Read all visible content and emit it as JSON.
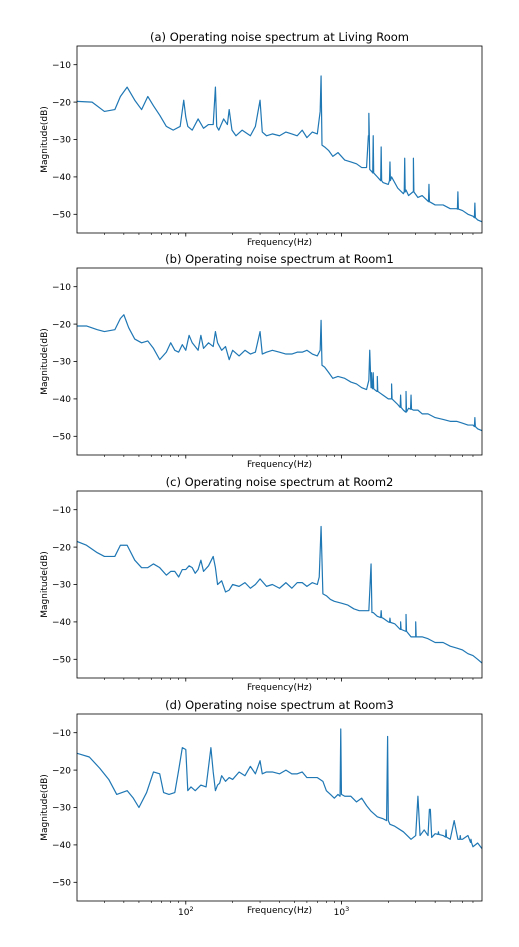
{
  "chart_data": [
    {
      "type": "line",
      "title": "(a) Operating noise spectrum at Living Room",
      "xlabel": "Frequency(Hz)",
      "ylabel": "Magnitude(dB)",
      "x_scale": "log",
      "xlim": [
        20,
        8000
      ],
      "ylim": [
        -55,
        -5
      ],
      "yticks": [
        -10,
        -20,
        -30,
        -40,
        -50
      ],
      "line_color": "#1f77b4",
      "grid": false,
      "series": [
        {
          "x": [
            20,
            25,
            30,
            35,
            38,
            42,
            47,
            52,
            57,
            62,
            68,
            75,
            83,
            92,
            97,
            100,
            103,
            110,
            120,
            130,
            140,
            150,
            155,
            158,
            163,
            175,
            185,
            190,
            198,
            210,
            230,
            260,
            280,
            300,
            310,
            330,
            360,
            400,
            440,
            480,
            520,
            560,
            600,
            650,
            700,
            730,
            740,
            750,
            780,
            830,
            880,
            950,
            1050,
            1150,
            1250,
            1350,
            1450,
            1500,
            1520,
            1560,
            1700,
            1850,
            2000,
            2100,
            2300,
            2500,
            2600,
            2700,
            2900,
            3100,
            3300,
            3600,
            4000,
            4500,
            5000,
            5500,
            6000,
            6500,
            7000,
            7500,
            8000
          ],
          "y": [
            -19.8,
            -20,
            -22.5,
            -22,
            -18.5,
            -16,
            -19.5,
            -22,
            -18.5,
            -21,
            -23.5,
            -26.5,
            -27.5,
            -26.5,
            -19.5,
            -24,
            -26.5,
            -27.5,
            -24.5,
            -27,
            -26,
            -26,
            -16,
            -26.5,
            -27.5,
            -24.5,
            -26,
            -22,
            -27.5,
            -29,
            -27.5,
            -29,
            -26.5,
            -19.5,
            -28,
            -29,
            -28.5,
            -29,
            -28,
            -28.5,
            -29,
            -27.5,
            -29.5,
            -28,
            -28.5,
            -22.5,
            -13,
            -31.5,
            -32,
            -33,
            -34.5,
            -33.5,
            -35.5,
            -36,
            -36.5,
            -37.5,
            -37.5,
            -29,
            -38,
            -38.5,
            -40,
            -41.5,
            -42,
            -40,
            -43,
            -44.5,
            -43.5,
            -45,
            -44,
            -45.5,
            -45,
            -46.5,
            -47.5,
            -47.5,
            -48.5,
            -48.5,
            -49,
            -50,
            -50.5,
            -51.5,
            -52
          ]
        }
      ],
      "peaks": [
        {
          "x": 1500,
          "y": -23
        },
        {
          "x": 1600,
          "y": -29
        },
        {
          "x": 1800,
          "y": -32
        },
        {
          "x": 2050,
          "y": -36
        },
        {
          "x": 2550,
          "y": -35
        },
        {
          "x": 2900,
          "y": -35
        },
        {
          "x": 3650,
          "y": -42
        },
        {
          "x": 5600,
          "y": -44
        },
        {
          "x": 7200,
          "y": -47
        }
      ]
    },
    {
      "type": "line",
      "title": "(b) Operating noise spectrum at Room1",
      "xlabel": "Frequency(Hz)",
      "ylabel": "Magnitude(dB)",
      "x_scale": "log",
      "xlim": [
        20,
        8000
      ],
      "ylim": [
        -55,
        -5
      ],
      "yticks": [
        -10,
        -20,
        -30,
        -40,
        -50
      ],
      "line_color": "#1f77b4",
      "grid": false,
      "series": [
        {
          "x": [
            20,
            23,
            27,
            30,
            35,
            38,
            40,
            43,
            47,
            52,
            57,
            62,
            68,
            75,
            80,
            85,
            90,
            95,
            100,
            105,
            110,
            120,
            125,
            130,
            140,
            150,
            155,
            160,
            170,
            180,
            190,
            200,
            220,
            240,
            260,
            280,
            300,
            310,
            330,
            360,
            400,
            440,
            480,
            520,
            560,
            600,
            650,
            700,
            730,
            740,
            750,
            780,
            830,
            880,
            950,
            1050,
            1150,
            1250,
            1350,
            1450,
            1500,
            1520,
            1560,
            1700,
            1850,
            2000,
            2100,
            2300,
            2500,
            2600,
            2700,
            2900,
            3100,
            3300,
            3600,
            4000,
            4500,
            5000,
            5500,
            6000,
            6500,
            7000,
            7500,
            8000
          ],
          "y": [
            -20.5,
            -20.5,
            -21.5,
            -22,
            -21.5,
            -18.5,
            -17.5,
            -21,
            -24,
            -25,
            -24.5,
            -26.5,
            -29.5,
            -27.5,
            -25,
            -27,
            -27.5,
            -25.5,
            -27,
            -23,
            -25,
            -27,
            -23,
            -26.5,
            -25,
            -26,
            -22,
            -25,
            -27,
            -26,
            -29.5,
            -27,
            -28.5,
            -27,
            -28,
            -27.5,
            -22,
            -28,
            -27.5,
            -27,
            -27.5,
            -28,
            -28,
            -27.5,
            -27.5,
            -27,
            -28,
            -28.5,
            -27,
            -19,
            -31,
            -31.5,
            -33,
            -34.5,
            -34,
            -34.5,
            -35.5,
            -36,
            -37,
            -37.5,
            -35,
            -27,
            -37,
            -38,
            -39,
            -40,
            -40,
            -41.5,
            -43,
            -43.5,
            -42.5,
            -43,
            -43,
            -44,
            -44,
            -45,
            -45.5,
            -46,
            -46,
            -46.5,
            -47,
            -47,
            -48,
            -48.5
          ]
        }
      ],
      "peaks": [
        {
          "x": 1560,
          "y": -33
        },
        {
          "x": 1600,
          "y": -33
        },
        {
          "x": 1700,
          "y": -34
        },
        {
          "x": 2100,
          "y": -36
        },
        {
          "x": 2400,
          "y": -39
        },
        {
          "x": 2600,
          "y": -38
        },
        {
          "x": 2800,
          "y": -39
        },
        {
          "x": 7200,
          "y": -45
        }
      ]
    },
    {
      "type": "line",
      "title": "(c) Operating noise spectrum at Room2",
      "xlabel": "Frequency(Hz)",
      "ylabel": "Magnitude(dB)",
      "x_scale": "log",
      "xlim": [
        20,
        8000
      ],
      "ylim": [
        -55,
        -5
      ],
      "yticks": [
        -10,
        -20,
        -30,
        -40,
        -50
      ],
      "line_color": "#1f77b4",
      "grid": false,
      "series": [
        {
          "x": [
            20,
            23,
            27,
            30,
            35,
            38,
            42,
            47,
            52,
            57,
            62,
            68,
            75,
            80,
            85,
            90,
            95,
            100,
            105,
            110,
            115,
            120,
            125,
            130,
            140,
            150,
            155,
            160,
            170,
            180,
            190,
            200,
            220,
            240,
            260,
            280,
            300,
            330,
            360,
            400,
            440,
            480,
            520,
            560,
            600,
            650,
            700,
            720,
            740,
            760,
            800,
            850,
            900,
            1000,
            1100,
            1200,
            1300,
            1400,
            1500,
            1550,
            1570,
            1600,
            1700,
            1850,
            2000,
            2200,
            2400,
            2600,
            2800,
            3000,
            3300,
            3600,
            4000,
            4500,
            5000,
            5500,
            6000,
            6500,
            7000,
            7500,
            8000
          ],
          "y": [
            -18.5,
            -19.5,
            -21.5,
            -22.5,
            -22.5,
            -19.5,
            -19.5,
            -23.5,
            -25.5,
            -25.5,
            -24.5,
            -25.5,
            -27.5,
            -26.5,
            -26.5,
            -28,
            -26,
            -26,
            -25,
            -25.5,
            -27,
            -26,
            -23.5,
            -26.5,
            -25,
            -22.5,
            -25.5,
            -30,
            -29,
            -32,
            -31.5,
            -30,
            -30.5,
            -29.5,
            -31,
            -30,
            -28.5,
            -30.5,
            -30,
            -31,
            -29.5,
            -31,
            -29.5,
            -29.5,
            -30.5,
            -29.5,
            -30,
            -28,
            -14.5,
            -32.5,
            -33,
            -34,
            -34.5,
            -35,
            -35.5,
            -36.5,
            -37,
            -37,
            -37,
            -24.5,
            -37.5,
            -37.5,
            -38.5,
            -39,
            -40,
            -40.5,
            -42,
            -42.5,
            -44,
            -44,
            -44,
            -44.5,
            -45.5,
            -45.5,
            -46.5,
            -47,
            -47.5,
            -48.5,
            -49,
            -50,
            -51
          ]
        }
      ],
      "peaks": [
        {
          "x": 1800,
          "y": -37
        },
        {
          "x": 2050,
          "y": -39
        },
        {
          "x": 2400,
          "y": -40
        },
        {
          "x": 2600,
          "y": -38
        },
        {
          "x": 3000,
          "y": -40
        }
      ]
    },
    {
      "type": "line",
      "title": "(d) Operating noise spectrum at Room3",
      "xlabel": "Frequency(Hz)",
      "ylabel": "Magnitude(dB)",
      "x_scale": "log",
      "xlim": [
        20,
        8000
      ],
      "ylim": [
        -55,
        -5
      ],
      "yticks": [
        -10,
        -20,
        -30,
        -40,
        -50
      ],
      "xticks": [
        {
          "value": 100,
          "base": "10",
          "exp": "2"
        },
        {
          "value": 1000,
          "base": "10",
          "exp": "3"
        }
      ],
      "line_color": "#1f77b4",
      "grid": false,
      "series": [
        {
          "x": [
            20,
            24,
            28,
            32,
            36,
            42,
            46,
            50,
            56,
            62,
            68,
            72,
            78,
            85,
            90,
            95,
            100,
            103,
            108,
            115,
            125,
            135,
            145,
            150,
            155,
            160,
            165,
            170,
            180,
            190,
            200,
            220,
            240,
            260,
            280,
            300,
            310,
            330,
            360,
            400,
            440,
            480,
            520,
            560,
            600,
            650,
            700,
            760,
            800,
            850,
            900,
            950,
            980,
            990,
            1000,
            1050,
            1150,
            1250,
            1350,
            1450,
            1550,
            1700,
            1850,
            1950,
            1980,
            2000,
            2050,
            2200,
            2500,
            2800,
            3000,
            3100,
            3200,
            3400,
            3600,
            3700,
            3800,
            4000,
            4500,
            5000,
            5300,
            5600,
            6000,
            6500,
            7000,
            7500,
            8000
          ],
          "y": [
            -15.5,
            -16.5,
            -19.5,
            -22.5,
            -26.5,
            -25.5,
            -27.5,
            -30,
            -26,
            -20.5,
            -21,
            -26,
            -26.5,
            -26,
            -20,
            -14,
            -14.5,
            -25.5,
            -24.5,
            -25.5,
            -24,
            -24.5,
            -14,
            -20.5,
            -25.5,
            -24,
            -23.5,
            -21.5,
            -23,
            -22,
            -22.5,
            -20.5,
            -21.5,
            -19,
            -21,
            -17.5,
            -21,
            -20.5,
            -20.5,
            -21,
            -20,
            -21,
            -21,
            -20.5,
            -22,
            -22,
            -22,
            -23,
            -25.5,
            -26.5,
            -27.5,
            -26.5,
            -27,
            -9,
            -26.5,
            -27,
            -27,
            -28.5,
            -27.5,
            -29.5,
            -31,
            -32.5,
            -33,
            -33.5,
            -11,
            -33.5,
            -34.5,
            -35,
            -36.5,
            -38.5,
            -37.5,
            -27,
            -37.5,
            -36,
            -37.5,
            -30.5,
            -38,
            -37,
            -37.5,
            -38.5,
            -33.5,
            -38.5,
            -38.5,
            -37.5,
            -40.5,
            -39.5,
            -41
          ]
        }
      ],
      "peaks": [
        {
          "x": 3700,
          "y": -30.5
        },
        {
          "x": 4200,
          "y": -36.5
        },
        {
          "x": 4700,
          "y": -36
        },
        {
          "x": 5800,
          "y": -37.5
        },
        {
          "x": 6800,
          "y": -38.5
        }
      ]
    }
  ]
}
